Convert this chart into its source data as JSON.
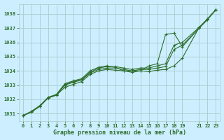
{
  "title": "Graphe pression niveau de la mer (hPa)",
  "bg_color": "#cceeff",
  "grid_color": "#aacccc",
  "line_color": "#2d6e2d",
  "xlim": [
    -0.5,
    23.5
  ],
  "ylim": [
    1030.5,
    1038.7
  ],
  "xtick_positions": [
    0,
    1,
    2,
    3,
    4,
    5,
    6,
    7,
    8,
    9,
    10,
    11,
    12,
    13,
    14,
    15,
    16,
    17,
    18,
    19,
    21,
    22,
    23
  ],
  "xtick_labels": [
    "0",
    "1",
    "2",
    "3",
    "4",
    "5",
    "6",
    "7",
    "8",
    "9",
    "10",
    "11",
    "12",
    "13",
    "14",
    "15",
    "16",
    "17",
    "18",
    "19",
    "21",
    "22",
    "23"
  ],
  "ytick_positions": [
    1031,
    1032,
    1033,
    1034,
    1035,
    1036,
    1037,
    1038
  ],
  "ytick_labels": [
    "1031",
    "1032",
    "1033",
    "1034",
    "1035",
    "1036",
    "1037",
    "1038"
  ],
  "series_x": [
    [
      0,
      1,
      2,
      3,
      4,
      5,
      6,
      7,
      8,
      9,
      10,
      11,
      12,
      13,
      14,
      15,
      16,
      17,
      18,
      19,
      21,
      22,
      23
    ],
    [
      0,
      1,
      2,
      3,
      4,
      5,
      6,
      7,
      8,
      9,
      10,
      11,
      12,
      13,
      14,
      15,
      16,
      17,
      18,
      19,
      21,
      22,
      23
    ],
    [
      0,
      1,
      2,
      3,
      4,
      5,
      6,
      7,
      8,
      9,
      10,
      11,
      12,
      13,
      14,
      15,
      16,
      17,
      18,
      19,
      21,
      22,
      23
    ],
    [
      0,
      1,
      2,
      3,
      4,
      5,
      6,
      7,
      8,
      9,
      10,
      11,
      12,
      13,
      14,
      15,
      16,
      17,
      18,
      19,
      21,
      22,
      23
    ]
  ],
  "series_y": [
    [
      1030.85,
      1031.1,
      1031.5,
      1032.1,
      1032.3,
      1032.85,
      1033.05,
      1033.25,
      1033.75,
      1034.0,
      1034.1,
      1034.05,
      1034.0,
      1033.9,
      1034.0,
      1033.95,
      1034.05,
      1034.1,
      1034.35,
      1034.9,
      1037.05,
      1037.65,
      1038.3
    ],
    [
      1030.85,
      1031.15,
      1031.5,
      1032.1,
      1032.3,
      1033.0,
      1033.2,
      1033.35,
      1033.85,
      1034.1,
      1034.2,
      1034.2,
      1034.1,
      1034.0,
      1034.1,
      1034.1,
      1034.2,
      1034.3,
      1035.5,
      1035.8,
      1037.0,
      1037.6,
      1038.3
    ],
    [
      1030.85,
      1031.15,
      1031.55,
      1032.15,
      1032.35,
      1033.05,
      1033.25,
      1033.4,
      1033.9,
      1034.2,
      1034.3,
      1034.3,
      1034.2,
      1034.1,
      1034.2,
      1034.2,
      1034.35,
      1034.5,
      1035.8,
      1036.0,
      1037.05,
      1037.65,
      1038.3
    ],
    [
      1030.85,
      1031.15,
      1031.55,
      1032.1,
      1032.35,
      1033.1,
      1033.3,
      1033.45,
      1034.0,
      1034.25,
      1034.35,
      1034.25,
      1034.0,
      1034.0,
      1034.0,
      1034.35,
      1034.5,
      1036.55,
      1036.65,
      1035.7,
      1037.0,
      1037.6,
      1038.3
    ]
  ],
  "linewidth": 0.8,
  "markersize": 2.5,
  "tick_fontsize": 5,
  "label_fontsize": 6,
  "figsize": [
    3.2,
    2.0
  ],
  "dpi": 100
}
